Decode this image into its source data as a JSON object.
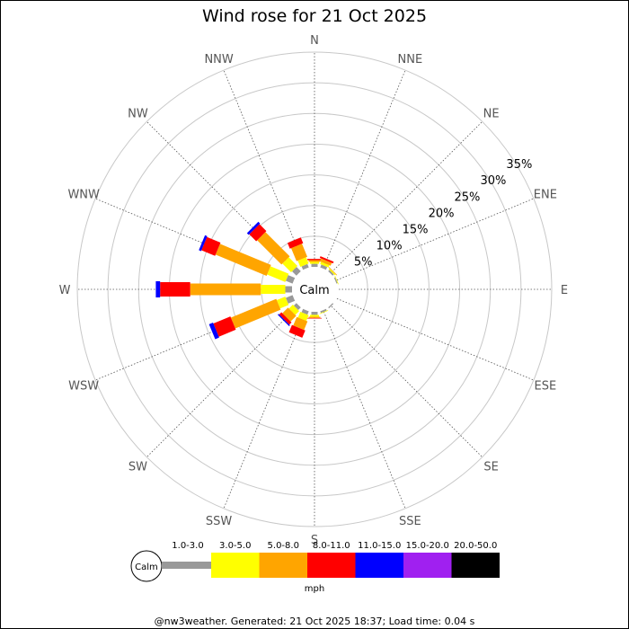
{
  "footer": "@nw3weather. Generated: 21 Oct 2025 18:37; Load time: 0.04 s",
  "chart_data": {
    "type": "wind-rose",
    "title": "Wind rose for 21 Oct 2025",
    "center_label": "Calm",
    "unit": "mph",
    "directions": [
      "N",
      "NNE",
      "NE",
      "ENE",
      "E",
      "ESE",
      "SE",
      "SSE",
      "S",
      "SSW",
      "SW",
      "WSW",
      "W",
      "WNW",
      "NW",
      "NNW"
    ],
    "ring_labels": [
      "5%",
      "10%",
      "15%",
      "20%",
      "25%",
      "30%",
      "35%"
    ],
    "ring_values": [
      5,
      10,
      15,
      20,
      25,
      30,
      35
    ],
    "rmax": 35,
    "speed_bins": [
      {
        "label": "1.0-3.0",
        "color": "#999999"
      },
      {
        "label": "3.0-5.0",
        "color": "#ffff00"
      },
      {
        "label": "5.0-8.0",
        "color": "#ffa500"
      },
      {
        "label": "8.0-11.0",
        "color": "#ff0000"
      },
      {
        "label": "11.0-15.0",
        "color": "#0000ff"
      },
      {
        "label": "15.0-20.0",
        "color": "#a020f0"
      },
      {
        "label": "20.0-50.0",
        "color": "#000000"
      }
    ],
    "calm_legend_label": "Calm",
    "frequencies": [
      {
        "direction": "N",
        "segments": [
          0.5,
          0.3,
          0.3,
          0.2,
          0,
          0,
          0
        ]
      },
      {
        "direction": "NNE",
        "segments": [
          0.5,
          0.4,
          0.5,
          0.3,
          0,
          0,
          0
        ]
      },
      {
        "direction": "NE",
        "segments": [
          0.3,
          0.2,
          0.1,
          0,
          0,
          0,
          0
        ]
      },
      {
        "direction": "ENE",
        "segments": [
          0.2,
          0.1,
          0,
          0,
          0,
          0,
          0
        ]
      },
      {
        "direction": "E",
        "segments": [
          0,
          0,
          0,
          0,
          0,
          0,
          0
        ]
      },
      {
        "direction": "ESE",
        "segments": [
          0,
          0,
          0,
          0,
          0,
          0,
          0
        ]
      },
      {
        "direction": "SE",
        "segments": [
          0.2,
          0,
          0,
          0,
          0,
          0,
          0
        ]
      },
      {
        "direction": "SSE",
        "segments": [
          0.3,
          0.1,
          0,
          0,
          0,
          0,
          0
        ]
      },
      {
        "direction": "S",
        "segments": [
          0.5,
          0.3,
          0.2,
          0.1,
          0,
          0,
          0
        ]
      },
      {
        "direction": "SSW",
        "segments": [
          0.6,
          1.0,
          1.5,
          1.3,
          0,
          0,
          0
        ]
      },
      {
        "direction": "SW",
        "segments": [
          0.6,
          0.9,
          1.3,
          0.5,
          0.2,
          0,
          0
        ]
      },
      {
        "direction": "WSW",
        "segments": [
          1.2,
          1.5,
          8.0,
          3.0,
          0.7,
          0,
          0
        ]
      },
      {
        "direction": "W",
        "segments": [
          1.1,
          4.0,
          11.5,
          4.9,
          0.7,
          0,
          0
        ]
      },
      {
        "direction": "WNW",
        "segments": [
          1.2,
          3.2,
          9.0,
          2.4,
          0.4,
          0,
          0
        ]
      },
      {
        "direction": "NW",
        "segments": [
          1.0,
          2.0,
          5.6,
          1.6,
          0.4,
          0,
          0
        ]
      },
      {
        "direction": "NNW",
        "segments": [
          0.6,
          1.1,
          2.3,
          1.0,
          0,
          0,
          0
        ]
      }
    ]
  }
}
